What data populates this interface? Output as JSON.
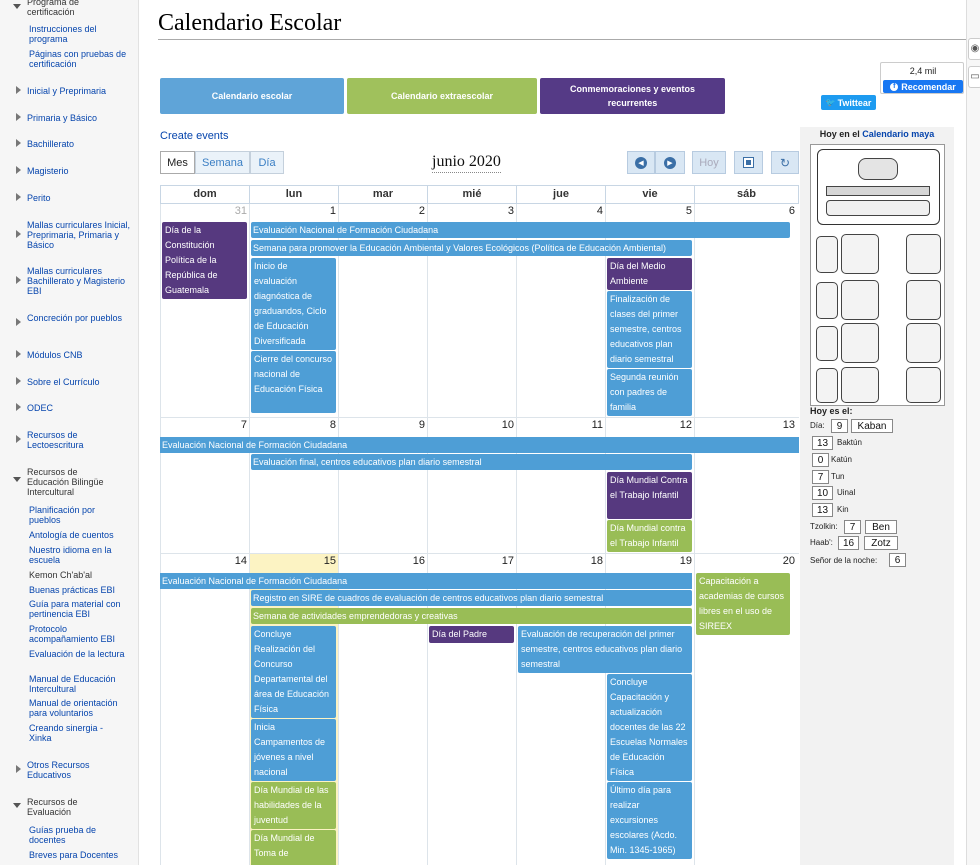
{
  "sidebar": {
    "top_section": {
      "label": "Programa de certificación"
    },
    "top_sub": [
      "Instrucciones del programa",
      "Páginas con pruebas de certificación"
    ],
    "items": [
      "Inicial y Preprimaria",
      "Primaria y Básico",
      "Bachillerato",
      "Magisterio",
      "Perito",
      "Mallas curriculares Inicial, Preprimaria, Primaria y Básico",
      "Mallas curriculares Bachillerato y Magisterio EBI",
      "Concreción por pueblos",
      "Módulos CNB",
      "Sobre el Currículo",
      "ODEC",
      "Recursos de Lectoescritura"
    ],
    "ebi_section": {
      "label": "Recursos de Educación Bilingüe Intercultural"
    },
    "ebi_sub": [
      "Planificación por pueblos",
      "Antología de cuentos",
      "Nuestro idioma en la escuela",
      "Kemon Ch'ab'al",
      "Buenas prácticas EBI",
      "Guía para material con pertinencia EBI",
      "Protocolo acompañamiento EBI",
      "Evaluación de la lectura",
      "Manual de Educación Intercultural",
      "Manual de orientación para voluntarios",
      "Creando sinergia - Xinka"
    ],
    "other_item": "Otros Recursos Educativos",
    "eval_section": {
      "label": "Recursos de Evaluación"
    },
    "eval_sub": [
      "Guías prueba de docentes",
      "Breves para Docentes"
    ]
  },
  "page": {
    "title": "Calendario Escolar"
  },
  "tabs": [
    {
      "label": "Calendario escolar",
      "color": "#5fa4d8"
    },
    {
      "label": "Calendario extraescolar",
      "color": "#a0c15c"
    },
    {
      "label": "Conmemoraciones y eventos recurrentes",
      "color": "#553a86"
    }
  ],
  "social": {
    "fb_count": "2,4 mil",
    "fb_label": "Recomendar",
    "tw_label": "Twittear"
  },
  "create_events": "Create events",
  "views": {
    "month": "Mes",
    "week": "Semana",
    "day": "Día"
  },
  "nav": {
    "prev": "◀",
    "next": "▶",
    "today": "Hoy"
  },
  "month_title": "junio 2020",
  "calendar": {
    "weekdays": [
      "dom",
      "lun",
      "mar",
      "mié",
      "jue",
      "vie",
      "sáb"
    ],
    "weeks": [
      [
        "31",
        "1",
        "2",
        "3",
        "4",
        "5",
        "6"
      ],
      [
        "7",
        "8",
        "9",
        "10",
        "11",
        "12",
        "13"
      ],
      [
        "14",
        "15",
        "16",
        "17",
        "18",
        "19",
        "20"
      ]
    ],
    "events": {
      "w1_constitucion": "Día de la Constitución Política de la República de Guatemala",
      "w1_evaluacion": "Evaluación Nacional de Formación Ciudadana",
      "w1_semana_ambiental": "Semana para promover la Educación Ambiental y Valores Ecológicos (Política de Educación Ambiental)",
      "w1_inicio_eval": "Inicio de evaluación diagnóstica de graduandos, Ciclo de Educación Diversificada",
      "w1_cierre": "Cierre del concurso nacional de Educación Física",
      "w1_medio_ambiente": "Día del Medio Ambiente",
      "w1_finalizacion": "Finalización de clases del primer semestre, centros educativos plan diario semestral",
      "w1_segunda": "Segunda reunión con padres de familia",
      "w2_evaluacion": "Evaluación Nacional de Formación Ciudadana",
      "w2_eval_final": "Evaluación final, centros educativos plan diario semestral",
      "w2_trabajo_infantil": "Día Mundial Contra el Trabajo Infantil",
      "w2_trabajo_infantil2": "Día Mundial contra el Trabajo Infantil",
      "w3_evaluacion": "Evaluación Nacional de Formación Ciudadana",
      "w3_capacitacion": "Capacitación a academias de cursos libres en el uso de SIREEX",
      "w3_registro": "Registro en SIRE de cuadros de evaluación de centros educativos plan diario semestral",
      "w3_semana_emprend": "Semana de actividades emprendedoras y creativas",
      "w3_concluye_concurso": "Concluye Realización del Concurso Departamental del área de Educación Física",
      "w3_padre": "Día del Padre",
      "w3_recuperacion": "Evaluación de recuperación del primer semestre, centros educativos plan diario semestral",
      "w3_concluye_cap": "Concluye Capacitación y actualización docentes de las 22 Escuelas Normales de Educación Física",
      "w3_campamentos": "Inicia Campamentos de jóvenes a nivel nacional",
      "w3_habilidades": "Día Mundial de las habilidades de la juventud",
      "w3_ultimo": "Último día para realizar excursiones escolares (Acdo. Min. 1345-1965)",
      "w3_toma": "Día Mundial de Toma de"
    }
  },
  "maya": {
    "title_prefix": "Hoy en el ",
    "title_link": "Calendario maya",
    "today_label": "Hoy es el:",
    "dia_label": "Día:",
    "dia_num": "9",
    "dia_name": "Kaban",
    "baktun_num": "13",
    "baktun_label": "Baktún",
    "katun_num": "0",
    "katun_label": "Katún",
    "tun_num": "7",
    "tun_label": "Tun",
    "uinal_num": "10",
    "uinal_label": "Uinal",
    "kin_num": "13",
    "kin_label": "Kin",
    "tzolkin_label": "Tzolkin:",
    "tzolkin_num": "7",
    "tzolkin_name": "Ben",
    "haab_label": "Haab':",
    "haab_num": "16",
    "haab_name": "Zotz",
    "senor_label": "Señor de la noche:",
    "senor_num": "6"
  }
}
